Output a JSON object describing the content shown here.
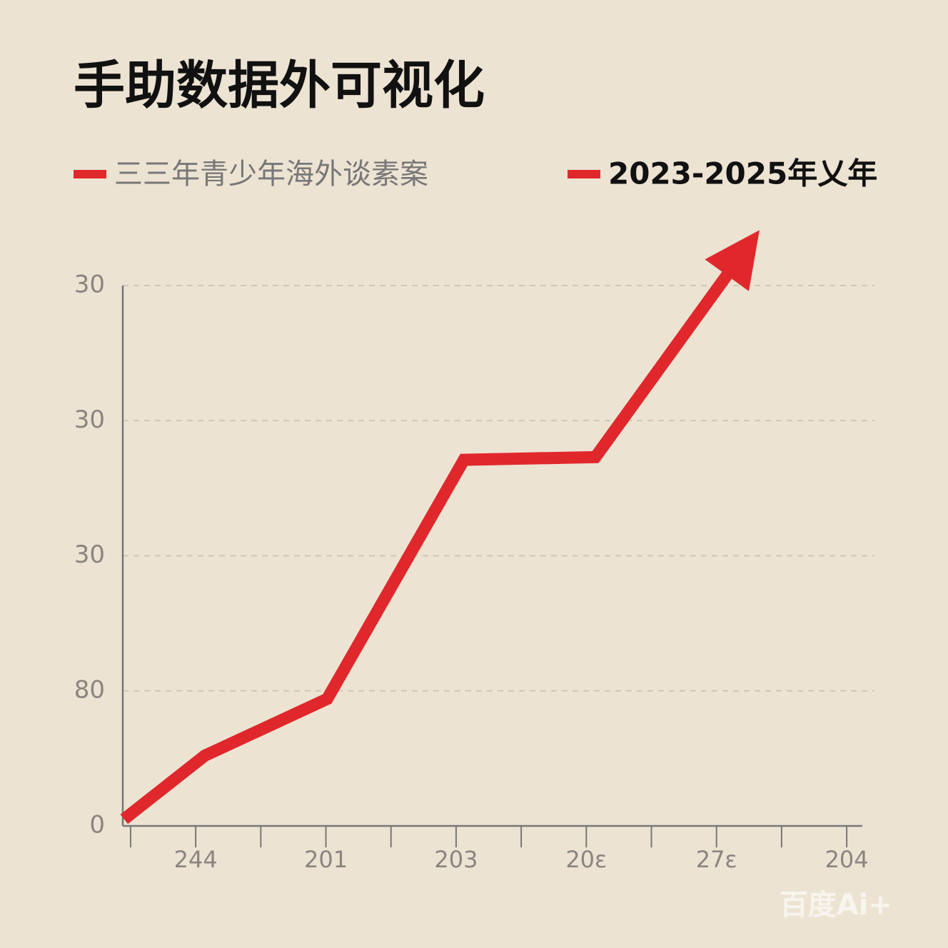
{
  "chart_data": {
    "type": "line",
    "title": "手助数据外可视化",
    "legend": [
      {
        "label": "三三年青少年海外谈素案",
        "color": "#e0282c"
      },
      {
        "label": "2023-2025年乂年",
        "color": "#e0282c"
      }
    ],
    "x": [
      -0.55,
      0.07,
      1.01,
      2.06,
      3.07,
      4.33
    ],
    "series": [
      {
        "color": "#e0282c",
        "values": [
          0.05,
          0.52,
          0.94,
          2.71,
          2.73,
          4.41
        ]
      }
    ],
    "xlim": [
      -0.56,
      5.12
    ],
    "xticks": [
      {
        "value": 0,
        "label": "244"
      },
      {
        "value": 1,
        "label": "201"
      },
      {
        "value": 2,
        "label": "203"
      },
      {
        "value": 3,
        "label": "20ε"
      },
      {
        "value": 4,
        "label": "27ɛ"
      },
      {
        "value": 5,
        "label": "204"
      }
    ],
    "xminorticks": [
      -0.5,
      0.5,
      1.5,
      2.5,
      3.5,
      4.5
    ],
    "ylim": [
      0,
      4
    ],
    "yticks": [
      {
        "value": 0,
        "label": "0"
      },
      {
        "value": 1,
        "label": "80"
      },
      {
        "value": 2,
        "label": "30"
      },
      {
        "value": 3,
        "label": "30"
      },
      {
        "value": 4,
        "label": "30"
      }
    ],
    "grid": true,
    "arrow_end": true,
    "watermark": "百度Ai+"
  }
}
